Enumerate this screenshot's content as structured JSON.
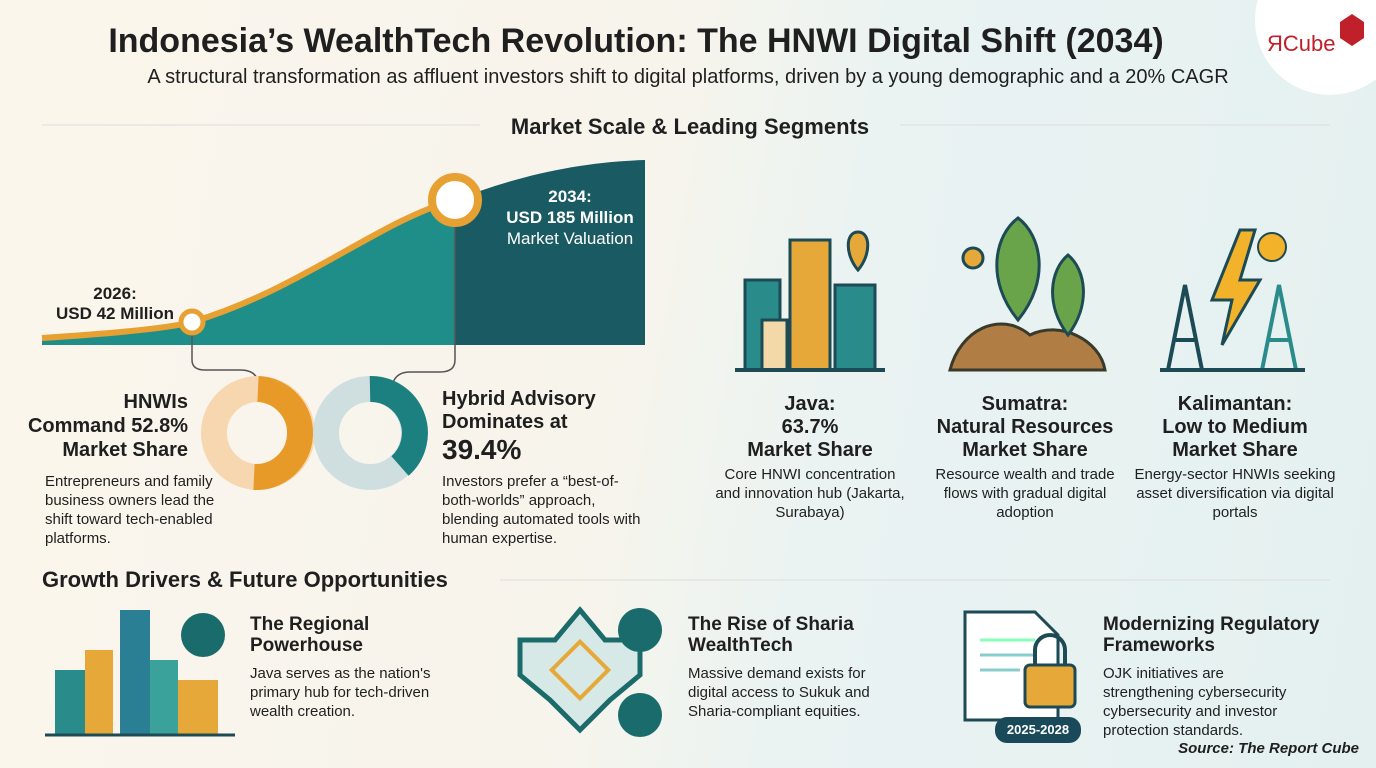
{
  "header": {
    "title": "Indonesia’s WealthTech Revolution: The HNWI Digital Shift (2034)",
    "subtitle": "A structural transformation as affluent investors shift to digital platforms, driven by a young demographic and a 20% CAGR",
    "logo": "ЯCube"
  },
  "market": {
    "heading": "Market Scale & Leading Segments",
    "start_label": [
      "2026:",
      "USD 42 Million"
    ],
    "end_label": [
      "2034:",
      "USD 185 Million",
      "Market Valuation"
    ],
    "segments": [
      {
        "heading": [
          "HNWIs",
          "Command 52.8%",
          "Market Share"
        ],
        "description": "Entrepreneurs and family business owners lead the shift toward tech-enabled platforms."
      },
      {
        "heading": [
          "Hybrid Advisory",
          "Dominates at",
          "39.4%"
        ],
        "description": "Investors prefer a “best-of-both-worlds” approach, blending automated tools with human expertise."
      }
    ]
  },
  "regions": [
    {
      "title": [
        "Java:",
        "63.7%",
        "Market Share"
      ],
      "description": "Core HNWI concentration and innovation hub (Jakarta, Surabaya)"
    },
    {
      "title": [
        "Sumatra:",
        "Natural Resources",
        "Market Share"
      ],
      "description": "Resource wealth and trade flows with gradual digital adoption"
    },
    {
      "title": [
        "Kalimantan:",
        "Low to Medium",
        "Market Share"
      ],
      "description": "Energy-sector HNWIs seeking asset diversification via digital portals"
    }
  ],
  "drivers": {
    "heading": "Growth Drivers & Future Opportunities",
    "items": [
      {
        "title": [
          "The Regional",
          "Powerhouse"
        ],
        "description": "Java serves as the nation's primary hub for tech-driven wealth creation."
      },
      {
        "title": [
          "The Rise of Sharia",
          "WealthTech"
        ],
        "description": "Massive demand exists for digital access to Sukuk and Sharia-compliant equities."
      },
      {
        "title": [
          "Modernizing Regulatory",
          "Frameworks"
        ],
        "description": "OJK initiatives are strengthening cybersecurity cybersecurity and investor protection standards.",
        "badge": "2025-2028"
      }
    ]
  },
  "source": "Source: The Report Cube"
}
